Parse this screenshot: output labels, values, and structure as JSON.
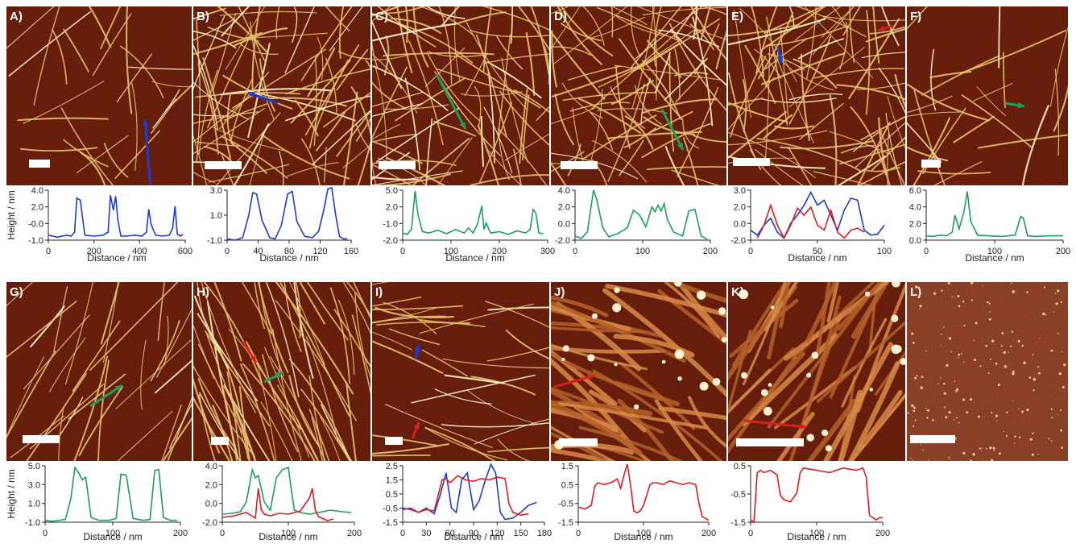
{
  "figure": {
    "y_label": "Height / nm",
    "x_label": "Distance / nm",
    "colors": {
      "blue": "#1f3ccc",
      "green": "#1f9e5a",
      "red": "#d62020",
      "afm_dark": "#5a1406",
      "afm_mid": "#8a2a0c",
      "fiber": "#e8c070"
    },
    "panels": [
      {
        "id": "A",
        "label": "A)",
        "arrows": [
          {
            "color": "blue"
          }
        ]
      },
      {
        "id": "B",
        "label": "B)",
        "arrows": [
          {
            "color": "blue"
          }
        ]
      },
      {
        "id": "C",
        "label": "C)",
        "arrows": [
          {
            "color": "green"
          }
        ]
      },
      {
        "id": "D",
        "label": "D)",
        "arrows": [
          {
            "color": "green"
          }
        ]
      },
      {
        "id": "E",
        "label": "E)",
        "arrows": [
          {
            "color": "blue"
          },
          {
            "color": "red"
          }
        ]
      },
      {
        "id": "F",
        "label": "F)",
        "arrows": [
          {
            "color": "green"
          }
        ]
      },
      {
        "id": "G",
        "label": "G)",
        "arrows": [
          {
            "color": "green"
          }
        ]
      },
      {
        "id": "H",
        "label": "H)",
        "arrows": [
          {
            "color": "red"
          },
          {
            "color": "green"
          }
        ]
      },
      {
        "id": "I",
        "label": "I)",
        "arrows": [
          {
            "color": "blue"
          },
          {
            "color": "red"
          }
        ]
      },
      {
        "id": "J",
        "label": "J)",
        "arrows": [
          {
            "color": "red"
          }
        ]
      },
      {
        "id": "K",
        "label": "K)",
        "arrows": [
          {
            "color": "red"
          }
        ]
      },
      {
        "id": "L",
        "label": "L)",
        "arrows": []
      }
    ]
  },
  "chart_data": [
    {
      "panel": "A",
      "type": "line",
      "xlabel": "Distance / nm",
      "ylabel": "Height / nm",
      "xlim": [
        0,
        600
      ],
      "ylim": [
        -1.0,
        4.0
      ],
      "xticks": [
        "0",
        "200",
        "400",
        "600"
      ],
      "yticks": [
        "4.0",
        "2.0",
        "-0.0",
        "-1.0"
      ],
      "series": [
        {
          "color": "blue",
          "x": [
            0,
            40,
            80,
            100,
            115,
            125,
            140,
            160,
            200,
            240,
            262,
            272,
            285,
            295,
            305,
            318,
            340,
            380,
            410,
            430,
            440,
            450,
            470,
            500,
            530,
            545,
            555,
            565,
            580,
            590
          ],
          "y": [
            -0.5,
            -0.7,
            -0.5,
            -0.6,
            -0.2,
            3.2,
            3.0,
            -0.5,
            -0.6,
            -0.5,
            -0.2,
            3.5,
            2.0,
            3.4,
            1.0,
            -0.6,
            -0.6,
            -0.5,
            -0.6,
            -0.2,
            2.1,
            0.6,
            -0.5,
            -0.6,
            -0.5,
            0.2,
            2.4,
            -0.4,
            -0.6,
            -0.4
          ]
        }
      ]
    },
    {
      "panel": "B",
      "type": "line",
      "xlabel": "Distance / nm",
      "ylabel": "",
      "xlim": [
        0,
        160
      ],
      "ylim": [
        -1.0,
        3.0
      ],
      "xticks": [
        "0",
        "40",
        "80",
        "120",
        "160"
      ],
      "yticks": [
        "3.0",
        "1.0",
        "-1.0"
      ],
      "series": [
        {
          "color": "blue",
          "x": [
            0,
            10,
            20,
            28,
            33,
            38,
            45,
            55,
            62,
            70,
            78,
            84,
            90,
            100,
            110,
            118,
            125,
            130,
            135,
            140,
            145,
            150,
            155
          ],
          "y": [
            -0.9,
            -1.0,
            -0.8,
            1.0,
            2.8,
            2.7,
            0.6,
            -0.8,
            -0.9,
            0.2,
            2.7,
            2.9,
            0.5,
            -0.7,
            -0.8,
            -0.3,
            1.5,
            3.1,
            3.2,
            1.0,
            -0.7,
            -0.9,
            -0.9
          ]
        }
      ]
    },
    {
      "panel": "C",
      "type": "line",
      "xlabel": "Distance / nm",
      "ylabel": "",
      "xlim": [
        0,
        330
      ],
      "ylim": [
        -2.0,
        5.0
      ],
      "xticks": [
        "0",
        "100",
        "200",
        "300"
      ],
      "yticks": [
        "5.0",
        "2.0",
        "-1.0",
        "-2.0"
      ],
      "series": [
        {
          "color": "green",
          "x": [
            0,
            10,
            20,
            28,
            35,
            45,
            60,
            80,
            100,
            120,
            140,
            150,
            160,
            170,
            180,
            185,
            190,
            200,
            220,
            240,
            260,
            280,
            290,
            297,
            303,
            310,
            320
          ],
          "y": [
            -1.0,
            -1.2,
            -0.5,
            4.9,
            1.5,
            -0.8,
            -1.0,
            -0.6,
            -1.1,
            -0.5,
            -1.0,
            -0.3,
            -1.0,
            0.2,
            2.8,
            -0.5,
            0.4,
            -1.0,
            -0.8,
            -1.2,
            -0.7,
            -1.0,
            -0.5,
            2.3,
            1.8,
            -1.0,
            -1.1
          ]
        }
      ]
    },
    {
      "panel": "D",
      "type": "line",
      "xlabel": "",
      "ylabel": "",
      "xlim": [
        0,
        220
      ],
      "ylim": [
        -2.0,
        4.0
      ],
      "xticks": [
        "0",
        "100",
        "200"
      ],
      "yticks": [
        "4.0",
        "2.0",
        "0.0",
        "-2.0"
      ],
      "series": [
        {
          "color": "green",
          "x": [
            0,
            10,
            20,
            30,
            35,
            45,
            55,
            70,
            85,
            95,
            105,
            115,
            125,
            130,
            135,
            140,
            145,
            150,
            160,
            175,
            185,
            195,
            205,
            215
          ],
          "y": [
            -1.5,
            -1.8,
            -1.0,
            4.0,
            3.0,
            -0.5,
            -1.6,
            -1.2,
            -0.5,
            1.6,
            1.0,
            -0.4,
            2.0,
            1.4,
            2.2,
            1.5,
            2.4,
            0.5,
            -1.0,
            -1.5,
            1.5,
            1.7,
            -1.5,
            -1.9
          ]
        }
      ]
    },
    {
      "panel": "E",
      "type": "line",
      "xlabel": "Distance / nm",
      "ylabel": "",
      "xlim": [
        0,
        100
      ],
      "ylim": [
        -2.0,
        3.0
      ],
      "xticks": [
        "0",
        "50",
        "100"
      ],
      "yticks": [
        "3.0",
        "2.0",
        "0.0",
        "-2.0"
      ],
      "series": [
        {
          "color": "blue",
          "x": [
            0,
            5,
            10,
            15,
            20,
            25,
            30,
            35,
            40,
            45,
            50,
            55,
            60,
            65,
            70,
            75,
            80,
            85,
            90,
            95,
            100
          ],
          "y": [
            -1.0,
            -1.5,
            -0.5,
            0.2,
            -1.2,
            -1.8,
            -0.3,
            0.5,
            1.5,
            2.8,
            1.5,
            2.0,
            0.5,
            -1.0,
            1.0,
            2.2,
            2.0,
            -1.0,
            -1.5,
            -1.4,
            -0.5
          ]
        },
        {
          "color": "red",
          "x": [
            5,
            10,
            15,
            20,
            25,
            30,
            35,
            40,
            45,
            50,
            55,
            60,
            65,
            70,
            75,
            80,
            85
          ],
          "y": [
            -1.8,
            -0.5,
            1.5,
            -0.5,
            -1.8,
            -0.5,
            1.2,
            0.5,
            1.3,
            -0.5,
            -1.0,
            1.0,
            -1.2,
            -1.8,
            -1.0,
            -0.8,
            -1.2
          ]
        }
      ]
    },
    {
      "panel": "F",
      "type": "line",
      "xlabel": "Distance / nm",
      "ylabel": "",
      "xlim": [
        0,
        200
      ],
      "ylim": [
        -1.0,
        7.0
      ],
      "xticks": [
        "0",
        "100",
        "200"
      ],
      "yticks": [
        "6.0",
        "4.0",
        "2.0",
        "0.0"
      ],
      "series": [
        {
          "color": "green",
          "x": [
            0,
            10,
            20,
            30,
            38,
            42,
            48,
            55,
            60,
            65,
            75,
            90,
            110,
            130,
            138,
            142,
            148,
            160,
            180,
            200
          ],
          "y": [
            -0.3,
            -0.4,
            -0.2,
            -0.3,
            0.3,
            3.0,
            0.8,
            3.5,
            6.8,
            2.0,
            -0.2,
            -0.3,
            -0.4,
            -0.2,
            2.8,
            2.5,
            -0.3,
            -0.4,
            -0.3,
            -0.3
          ]
        }
      ]
    },
    {
      "panel": "G",
      "type": "line",
      "xlabel": "Distance / nm",
      "ylabel": "Height / nm",
      "xlim": [
        0,
        200
      ],
      "ylim": [
        -1.0,
        5.0
      ],
      "xticks": [
        "0",
        "100",
        "200"
      ],
      "yticks": [
        "5.0",
        "3.0",
        "1.0",
        "-1.0"
      ],
      "series": [
        {
          "color": "green",
          "x": [
            0,
            10,
            20,
            30,
            38,
            44,
            50,
            55,
            60,
            68,
            80,
            95,
            105,
            112,
            120,
            130,
            145,
            155,
            162,
            168,
            175,
            185,
            195
          ],
          "y": [
            -0.8,
            -0.9,
            -0.8,
            -0.7,
            1.5,
            4.8,
            4.2,
            3.5,
            3.8,
            -0.5,
            -0.8,
            -0.8,
            -0.6,
            4.1,
            4.0,
            -0.6,
            -0.8,
            -0.7,
            4.5,
            4.6,
            -0.5,
            -0.8,
            -0.8
          ]
        }
      ]
    },
    {
      "panel": "H",
      "type": "line",
      "xlabel": "Distance / nm",
      "ylabel": "",
      "xlim": [
        0,
        220
      ],
      "ylim": [
        -2.0,
        5.0
      ],
      "xticks": [
        "0",
        "100",
        "200"
      ],
      "yticks": [
        "4.0",
        "2.0",
        "0.0",
        "-2.0"
      ],
      "series": [
        {
          "color": "green",
          "x": [
            0,
            15,
            30,
            40,
            50,
            55,
            60,
            70,
            80,
            90,
            100,
            110,
            115,
            120,
            130,
            145,
            160,
            180,
            200,
            215
          ],
          "y": [
            -1.0,
            -0.9,
            -0.7,
            0.5,
            4.5,
            3.5,
            3.8,
            0.5,
            -0.5,
            3.5,
            4.5,
            4.8,
            2.0,
            -0.5,
            -0.8,
            -1.0,
            -0.8,
            -0.5,
            -0.7,
            -0.8
          ]
        },
        {
          "color": "red",
          "x": [
            0,
            20,
            40,
            55,
            60,
            65,
            70,
            80,
            95,
            110,
            130,
            145,
            150,
            155,
            160,
            175,
            185
          ],
          "y": [
            -1.4,
            -1.2,
            -0.8,
            -1.5,
            2.2,
            -0.5,
            -1.0,
            -1.2,
            -0.9,
            -1.0,
            -0.6,
            1.0,
            2.2,
            -0.5,
            -1.3,
            -1.8,
            -1.6
          ]
        }
      ]
    },
    {
      "panel": "I",
      "type": "line",
      "xlabel": "Distance / nm",
      "ylabel": "",
      "xlim": [
        0,
        180
      ],
      "ylim": [
        -1.5,
        2.5
      ],
      "xticks": [
        "0",
        "30",
        "60",
        "90",
        "120",
        "150",
        "180"
      ],
      "yticks": [
        "2.5",
        "1.5",
        "0.5",
        "-0.5",
        "-1.5"
      ],
      "series": [
        {
          "color": "blue",
          "x": [
            0,
            10,
            20,
            30,
            40,
            48,
            55,
            62,
            68,
            75,
            82,
            90,
            97,
            105,
            112,
            118,
            124,
            130,
            140,
            150,
            160,
            170
          ],
          "y": [
            -0.5,
            -0.6,
            -0.8,
            -0.5,
            -0.9,
            0.5,
            2.0,
            -0.5,
            -0.8,
            1.5,
            2.0,
            -0.6,
            0.0,
            1.5,
            2.6,
            2.0,
            -0.8,
            -1.3,
            -1.2,
            -0.8,
            -0.3,
            -0.1
          ]
        },
        {
          "color": "red",
          "x": [
            0,
            10,
            20,
            30,
            40,
            50,
            55,
            60,
            70,
            80,
            90,
            100,
            110,
            120,
            130,
            135,
            140,
            150,
            160
          ],
          "y": [
            -0.6,
            -0.5,
            -0.8,
            -0.6,
            -0.7,
            1.5,
            1.6,
            1.3,
            1.8,
            1.5,
            1.4,
            1.6,
            1.5,
            1.7,
            1.6,
            -0.2,
            -0.8,
            -1.0,
            -0.9
          ]
        }
      ]
    },
    {
      "panel": "J",
      "type": "line",
      "xlabel": "Distance / nm",
      "ylabel": "",
      "xlim": [
        0,
        200
      ],
      "ylim": [
        -1.5,
        1.5
      ],
      "xticks": [
        "0",
        "100",
        "200"
      ],
      "yticks": [
        "1.5",
        "0.5",
        "-0.5",
        "-1.5"
      ],
      "series": [
        {
          "color": "red",
          "x": [
            0,
            10,
            20,
            25,
            30,
            40,
            50,
            60,
            65,
            70,
            75,
            80,
            85,
            90,
            95,
            100,
            110,
            115,
            120,
            130,
            140,
            150,
            160,
            170,
            180,
            185,
            190,
            195,
            200
          ],
          "y": [
            -0.7,
            -0.8,
            -0.6,
            0.4,
            0.6,
            0.5,
            0.6,
            0.8,
            0.3,
            1.0,
            1.6,
            0.5,
            -0.9,
            -1.0,
            -0.9,
            -0.6,
            0.5,
            0.6,
            0.6,
            0.5,
            0.7,
            0.6,
            0.5,
            0.6,
            0.5,
            -0.5,
            -1.2,
            -1.3,
            -1.4
          ]
        }
      ]
    },
    {
      "panel": "K",
      "type": "line",
      "xlabel": "Distance / nm",
      "ylabel": "",
      "xlim": [
        0,
        200
      ],
      "ylim": [
        -1.5,
        1.0
      ],
      "xticks": [
        "0",
        "100",
        "200"
      ],
      "yticks": [
        "0.5",
        "-0.5",
        "-1.5"
      ],
      "series": [
        {
          "color": "red",
          "x": [
            0,
            5,
            10,
            15,
            20,
            30,
            40,
            45,
            50,
            60,
            70,
            75,
            80,
            100,
            120,
            140,
            160,
            170,
            175,
            180,
            185,
            190,
            195,
            200
          ],
          "y": [
            -1.4,
            -1.5,
            0.7,
            0.8,
            0.7,
            0.8,
            0.6,
            -0.3,
            -0.5,
            -0.6,
            -0.2,
            0.7,
            0.9,
            0.8,
            0.7,
            0.9,
            0.8,
            0.9,
            0.5,
            -1.2,
            -1.3,
            -1.4,
            -1.3,
            -1.3
          ]
        }
      ]
    }
  ]
}
